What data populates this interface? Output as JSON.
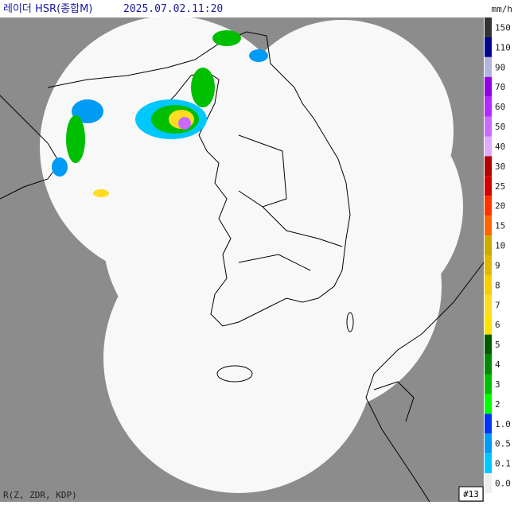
{
  "header": {
    "title": "레이더 HSR(종합M)",
    "time": "2025.07.02.11:20"
  },
  "legend": {
    "unit": "mm/h",
    "items": [
      {
        "label": "150",
        "color": "#333333"
      },
      {
        "label": "110",
        "color": "#000390"
      },
      {
        "label": "90",
        "color": "#b3b4de"
      },
      {
        "label": "70",
        "color": "#9300e4"
      },
      {
        "label": "60",
        "color": "#b329ff"
      },
      {
        "label": "50",
        "color": "#c969ff"
      },
      {
        "label": "40",
        "color": "#dfa9ff"
      },
      {
        "label": "30",
        "color": "#b40000"
      },
      {
        "label": "25",
        "color": "#d20000"
      },
      {
        "label": "20",
        "color": "#ff3200"
      },
      {
        "label": "15",
        "color": "#ff6600"
      },
      {
        "label": "10",
        "color": "#ccaa00"
      },
      {
        "label": "9",
        "color": "#e0b900"
      },
      {
        "label": "8",
        "color": "#f9cd00"
      },
      {
        "label": "7",
        "color": "#ffdc1f"
      },
      {
        "label": "6",
        "color": "#ffe100"
      },
      {
        "label": "5",
        "color": "#005a00"
      },
      {
        "label": "4",
        "color": "#008c00"
      },
      {
        "label": "3",
        "color": "#00be00"
      },
      {
        "label": "2",
        "color": "#00ff00"
      },
      {
        "label": "1.0",
        "color": "#0033f5"
      },
      {
        "label": "0.5",
        "color": "#009bf5"
      },
      {
        "label": "0.1",
        "color": "#00c8ff"
      },
      {
        "label": "0.0",
        "color": "#eeeeee"
      }
    ]
  },
  "footer": {
    "source": "R(Z, ZDR, KDP)",
    "station": "#13"
  }
}
